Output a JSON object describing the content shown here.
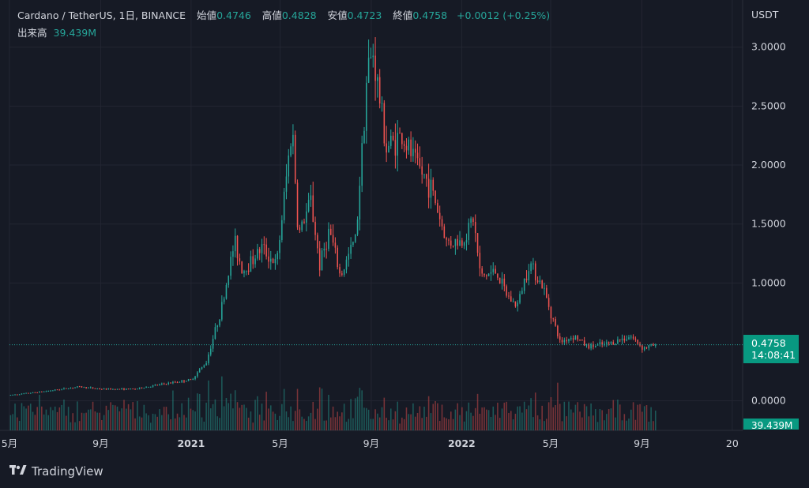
{
  "header": {
    "symbol": "Cardano / TetherUS, 1日, BINANCE",
    "open_label": "始値",
    "open": "0.4746",
    "high_label": "高値",
    "high": "0.4828",
    "low_label": "安値",
    "low": "0.4723",
    "close_label": "終値",
    "close": "0.4758",
    "change": "+0.0012 (+0.25%)",
    "volume_label": "出来高",
    "volume": "39.439M"
  },
  "unit_label": "USDT",
  "last_price_tag": {
    "price": "0.4758",
    "countdown": "14:08:41"
  },
  "volume_tag": "39.439M",
  "brand": "TradingView",
  "colors": {
    "up": "#26a69a",
    "down": "#ef5350",
    "background": "#161a25",
    "grid": "#232632",
    "text": "#d1d4dc",
    "tag": "#089981"
  },
  "chart_data": {
    "type": "candlestick",
    "y_ticks": [
      "3.0000",
      "2.5000",
      "2.0000",
      "1.5000",
      "1.0000",
      "0.0000"
    ],
    "y_tick_values": [
      3.0,
      2.5,
      2.0,
      1.5,
      1.0,
      0.0
    ],
    "x_ticks": [
      "5月",
      "9月",
      "2021",
      "5月",
      "9月",
      "2022",
      "5月",
      "9月",
      "20"
    ],
    "x_tick_dates": [
      "2020-05",
      "2020-09",
      "2021-01",
      "2021-05",
      "2021-09",
      "2022-01",
      "2022-05",
      "2022-09",
      "2023-01"
    ],
    "x_range": [
      "2020-05-01",
      "2023-01-15"
    ],
    "ylim": [
      -0.25,
      3.4
    ],
    "price_path": [
      [
        "2020-05-01",
        0.05
      ],
      [
        "2020-06-15",
        0.08
      ],
      [
        "2020-08-01",
        0.12
      ],
      [
        "2020-09-01",
        0.1
      ],
      [
        "2020-10-15",
        0.1
      ],
      [
        "2020-11-20",
        0.14
      ],
      [
        "2020-12-31",
        0.18
      ],
      [
        "2021-01-20",
        0.33
      ],
      [
        "2021-02-10",
        0.8
      ],
      [
        "2021-02-27",
        1.35
      ],
      [
        "2021-03-10",
        1.1
      ],
      [
        "2021-04-05",
        1.3
      ],
      [
        "2021-04-25",
        1.15
      ],
      [
        "2021-05-16",
        2.35
      ],
      [
        "2021-05-24",
        1.4
      ],
      [
        "2021-06-10",
        1.7
      ],
      [
        "2021-06-22",
        1.15
      ],
      [
        "2021-07-05",
        1.45
      ],
      [
        "2021-07-20",
        1.05
      ],
      [
        "2021-08-10",
        1.4
      ],
      [
        "2021-08-25",
        2.8
      ],
      [
        "2021-09-02",
        2.95
      ],
      [
        "2021-09-20",
        2.15
      ],
      [
        "2021-10-10",
        2.25
      ],
      [
        "2021-10-31",
        2.0
      ],
      [
        "2021-11-20",
        1.8
      ],
      [
        "2021-12-10",
        1.35
      ],
      [
        "2021-12-31",
        1.35
      ],
      [
        "2022-01-15",
        1.55
      ],
      [
        "2022-01-25",
        1.05
      ],
      [
        "2022-02-15",
        1.1
      ],
      [
        "2022-03-01",
        0.9
      ],
      [
        "2022-03-15",
        0.8
      ],
      [
        "2022-04-01",
        1.18
      ],
      [
        "2022-04-20",
        0.95
      ],
      [
        "2022-05-12",
        0.5
      ],
      [
        "2022-06-01",
        0.55
      ],
      [
        "2022-06-18",
        0.46
      ],
      [
        "2022-07-15",
        0.48
      ],
      [
        "2022-08-15",
        0.55
      ],
      [
        "2022-09-01",
        0.45
      ],
      [
        "2022-09-20",
        0.4758
      ]
    ],
    "last": {
      "open": 0.4746,
      "high": 0.4828,
      "low": 0.4723,
      "close": 0.4758
    },
    "grid": true
  }
}
